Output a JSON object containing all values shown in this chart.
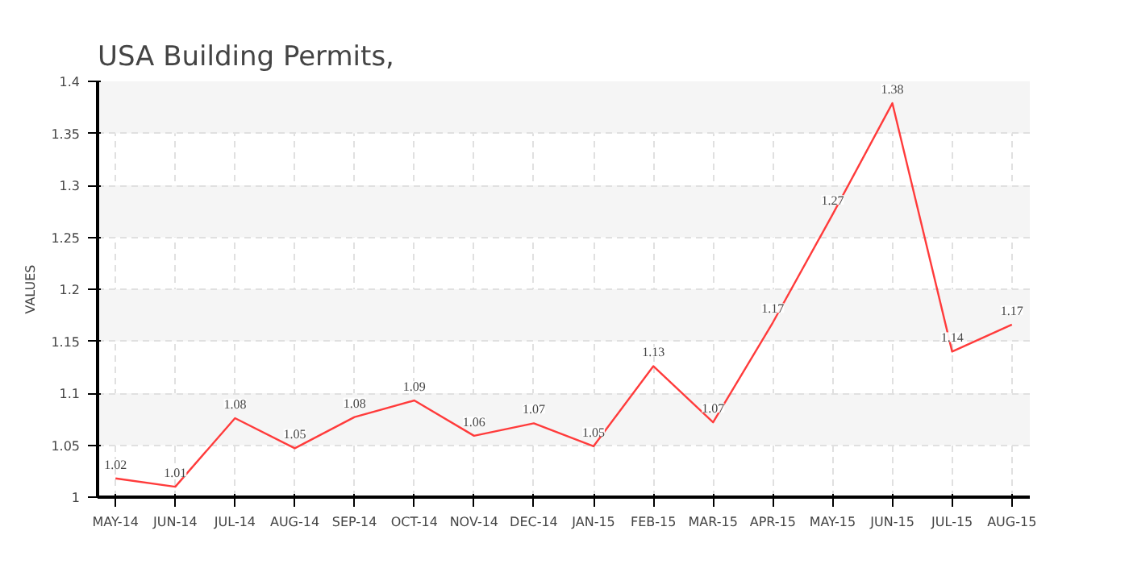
{
  "chart_data": {
    "type": "line",
    "title": "USA Building Permits,",
    "ylabel": "VALUES",
    "categories": [
      "MAY-14",
      "JUN-14",
      "JUL-14",
      "AUG-14",
      "SEP-14",
      "OCT-14",
      "NOV-14",
      "DEC-14",
      "JAN-15",
      "FEB-15",
      "MAR-15",
      "APR-15",
      "MAY-15",
      "JUN-15",
      "JUL-15",
      "AUG-15"
    ],
    "series": [
      {
        "color": "#ff3b3b",
        "values": [
          1.018,
          1.01,
          1.076,
          1.047,
          1.077,
          1.093,
          1.059,
          1.071,
          1.049,
          1.126,
          1.072,
          1.168,
          1.272,
          1.379,
          1.14,
          1.166
        ],
        "value_labels": [
          "1.02",
          "1.01",
          "1.08",
          "1.05",
          "1.08",
          "1.09",
          "1.06",
          "1.07",
          "1.05",
          "1.13",
          "1.07",
          "1.17",
          "1.27",
          "1.38",
          "1.14",
          "1.17"
        ]
      }
    ],
    "ylim": [
      1,
      1.4
    ],
    "yticks": [
      1,
      1.05,
      1.1,
      1.15,
      1.2,
      1.25,
      1.3,
      1.35,
      1.4
    ],
    "grid": true,
    "marker": "none",
    "line_style": "solid"
  }
}
